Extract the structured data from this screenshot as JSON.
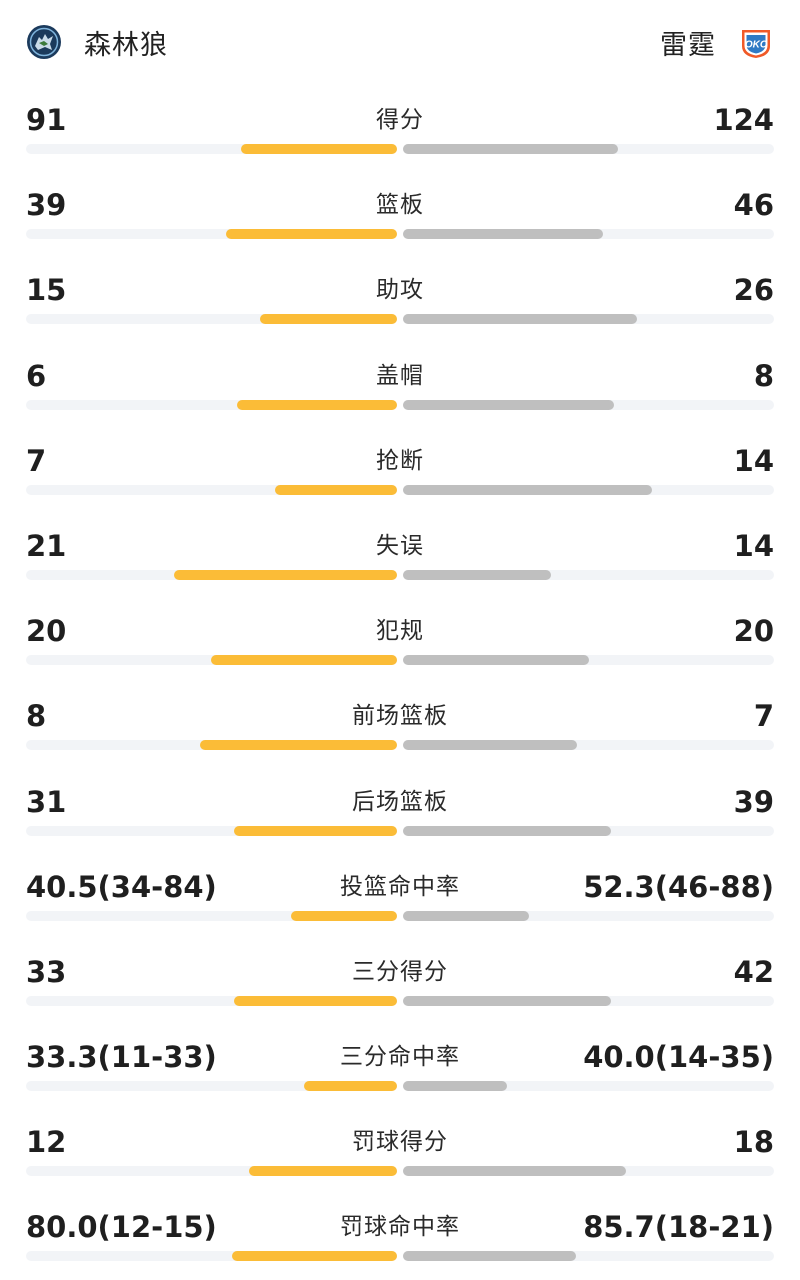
{
  "header": {
    "home": {
      "name": "森林狼",
      "logo_icon": "timberwolves-logo-icon"
    },
    "away": {
      "name": "雷霆",
      "logo_icon": "thunder-okc-logo-icon"
    }
  },
  "colors": {
    "home_bar": "#fbbc37",
    "away_bar": "#bfbfbf",
    "track": "#f2f4f7"
  },
  "stats": [
    {
      "label": "得分",
      "home": "91",
      "away": "124",
      "home_fill": 0.42,
      "away_fill": 0.58
    },
    {
      "label": "篮板",
      "home": "39",
      "away": "46",
      "home_fill": 0.46,
      "away_fill": 0.54
    },
    {
      "label": "助攻",
      "home": "15",
      "away": "26",
      "home_fill": 0.37,
      "away_fill": 0.63
    },
    {
      "label": "盖帽",
      "home": "6",
      "away": "8",
      "home_fill": 0.43,
      "away_fill": 0.57
    },
    {
      "label": "抢断",
      "home": "7",
      "away": "14",
      "home_fill": 0.33,
      "away_fill": 0.67
    },
    {
      "label": "失误",
      "home": "21",
      "away": "14",
      "home_fill": 0.6,
      "away_fill": 0.4
    },
    {
      "label": "犯规",
      "home": "20",
      "away": "20",
      "home_fill": 0.5,
      "away_fill": 0.5
    },
    {
      "label": "前场篮板",
      "home": "8",
      "away": "7",
      "home_fill": 0.53,
      "away_fill": 0.47
    },
    {
      "label": "后场篮板",
      "home": "31",
      "away": "39",
      "home_fill": 0.44,
      "away_fill": 0.56
    },
    {
      "label": "投篮命中率",
      "home": "40.5(34-84)",
      "away": "52.3(46-88)",
      "home_fill": 0.285,
      "away_fill": 0.34
    },
    {
      "label": "三分得分",
      "home": "33",
      "away": "42",
      "home_fill": 0.44,
      "away_fill": 0.56
    },
    {
      "label": "三分命中率",
      "home": "33.3(11-33)",
      "away": "40.0(14-35)",
      "home_fill": 0.25,
      "away_fill": 0.28
    },
    {
      "label": "罚球得分",
      "home": "12",
      "away": "18",
      "home_fill": 0.4,
      "away_fill": 0.6
    },
    {
      "label": "罚球命中率",
      "home": "80.0(12-15)",
      "away": "85.7(18-21)",
      "home_fill": 0.445,
      "away_fill": 0.465
    }
  ]
}
